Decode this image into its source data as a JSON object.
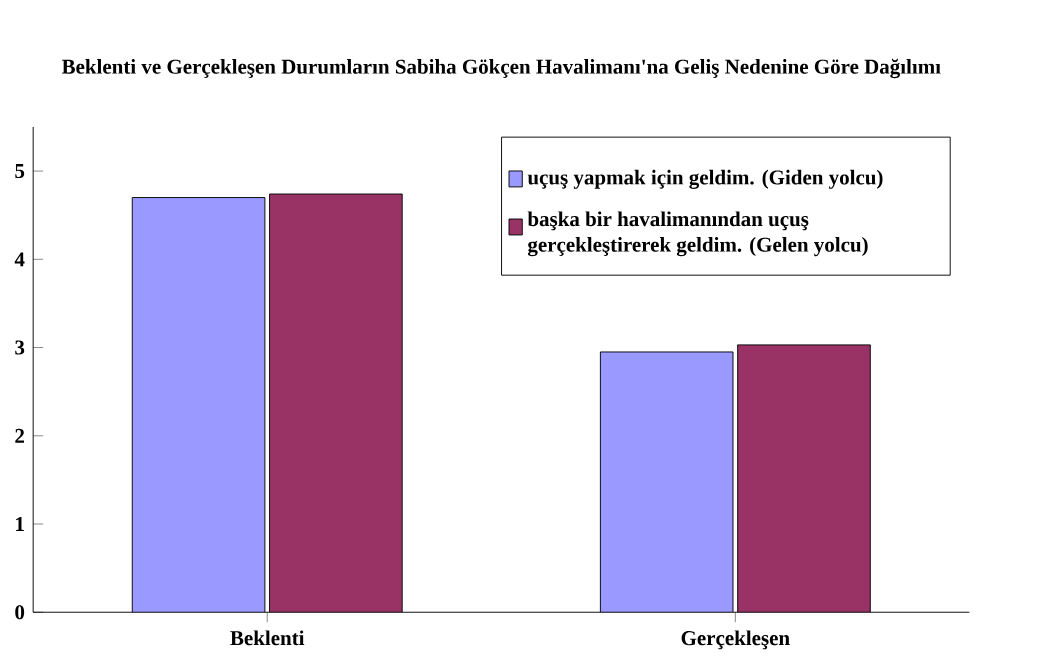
{
  "chart_data": {
    "type": "bar",
    "title": "Beklenti ve Gerçekleşen Durumların Sabiha Gökçen Havalimanı'na Geliş Nedenine Göre Dağılımı",
    "categories": [
      "Beklenti",
      "Gerçekleşen"
    ],
    "series": [
      {
        "name": "uçuş yapmak için geldim. (Giden yolcu)",
        "color": "#9999ff",
        "values": [
          4.7,
          2.95
        ]
      },
      {
        "name": "başka bir havalimanından uçuş gerçekleştirerek geldim. (Gelen yolcu)",
        "color": "#993366",
        "values": [
          4.74,
          3.03
        ]
      }
    ],
    "ylim": [
      0,
      5.5
    ],
    "yticks": [
      0,
      1,
      2,
      3,
      4,
      5
    ],
    "grid": false,
    "legend": "top right"
  }
}
